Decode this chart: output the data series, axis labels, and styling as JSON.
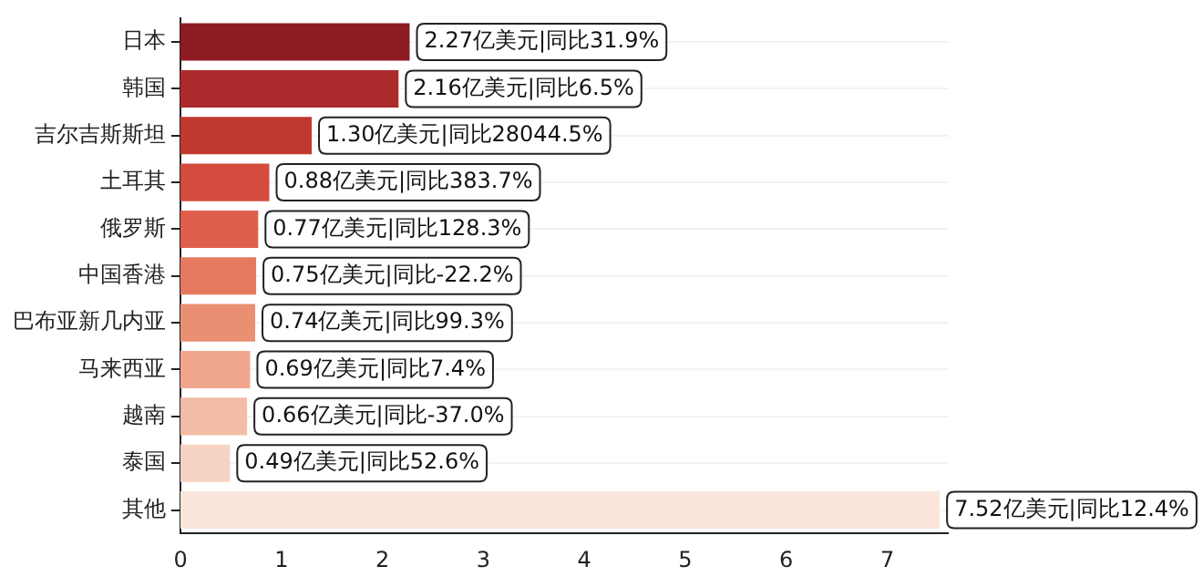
{
  "chart_data": {
    "type": "bar",
    "orientation": "horizontal",
    "categories": [
      "日本",
      "韩国",
      "吉尔吉斯斯坦",
      "土耳其",
      "俄罗斯",
      "中国香港",
      "巴布亚新几内亚",
      "马来西亚",
      "越南",
      "泰国",
      "其他"
    ],
    "values": [
      2.27,
      2.16,
      1.3,
      0.88,
      0.77,
      0.75,
      0.74,
      0.69,
      0.66,
      0.49,
      7.52
    ],
    "colors": [
      "#8e1b22",
      "#ad2a2c",
      "#c0392f",
      "#d44c3e",
      "#df5f4c",
      "#e67a60",
      "#eb8f73",
      "#f0a68d",
      "#f3bca6",
      "#f7d3c3",
      "#fae6dc"
    ],
    "value_labels": [
      "2.27亿美元|同比31.9%",
      "2.16亿美元|同比6.5%",
      "1.30亿美元|同比28044.5%",
      "0.88亿美元|同比383.7%",
      "0.77亿美元|同比128.3%",
      "0.75亿美元|同比-22.2%",
      "0.74亿美元|同比99.3%",
      "0.69亿美元|同比7.4%",
      "0.66亿美元|同比-37.0%",
      "0.49亿美元|同比52.6%",
      "7.52亿美元|同比12.4%"
    ],
    "xlim": [
      0,
      7.6
    ],
    "xticks": [
      0,
      1,
      2,
      3,
      4,
      5,
      6,
      7
    ],
    "grid": "y",
    "legend": false
  }
}
